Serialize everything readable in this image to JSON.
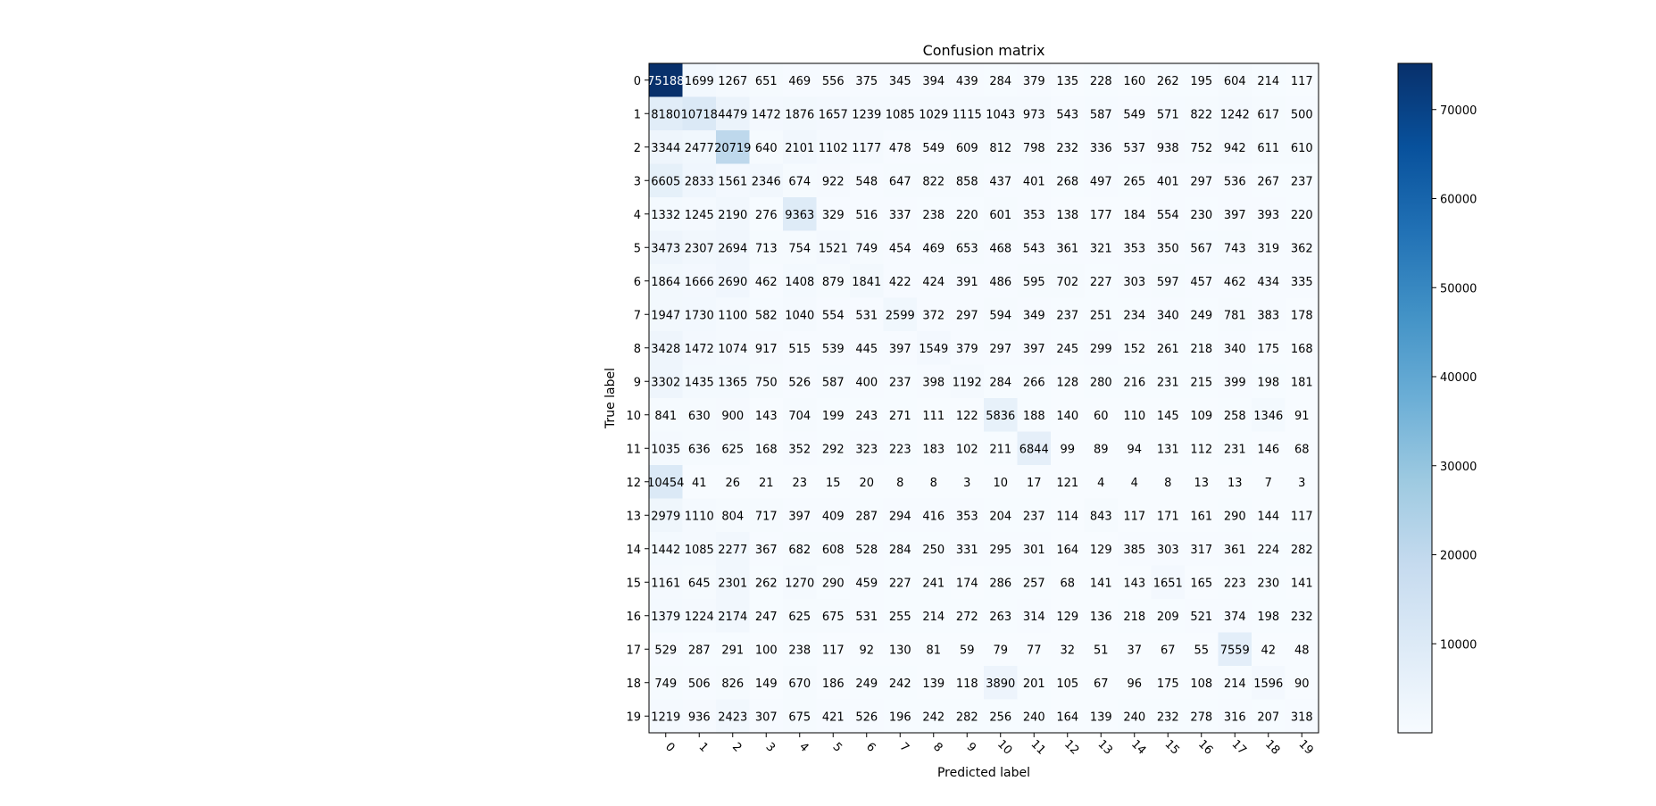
{
  "chart_data": {
    "type": "heatmap",
    "title": "Confusion matrix",
    "xlabel": "Predicted label",
    "ylabel": "True label",
    "x_labels": [
      "0",
      "1",
      "2",
      "3",
      "4",
      "5",
      "6",
      "7",
      "8",
      "9",
      "10",
      "11",
      "12",
      "13",
      "14",
      "15",
      "16",
      "17",
      "18",
      "19"
    ],
    "y_labels": [
      "0",
      "1",
      "2",
      "3",
      "4",
      "5",
      "6",
      "7",
      "8",
      "9",
      "10",
      "11",
      "12",
      "13",
      "14",
      "15",
      "16",
      "17",
      "18",
      "19"
    ],
    "colormap": "Blues",
    "color_min": "#f7fbff",
    "color_max": "#08306b",
    "value_range": [
      0,
      75188
    ],
    "colorbar_ticks": [
      "10000",
      "20000",
      "30000",
      "40000",
      "50000",
      "60000",
      "70000"
    ],
    "colorbar_tick_values": [
      10000,
      20000,
      30000,
      40000,
      50000,
      60000,
      70000
    ],
    "matrix": [
      [
        75188,
        1699,
        1267,
        651,
        469,
        556,
        375,
        345,
        394,
        439,
        284,
        379,
        135,
        228,
        160,
        262,
        195,
        604,
        214,
        117
      ],
      [
        8180,
        10718,
        4479,
        1472,
        1876,
        1657,
        1239,
        1085,
        1029,
        1115,
        1043,
        973,
        543,
        587,
        549,
        571,
        822,
        1242,
        617,
        500
      ],
      [
        3344,
        2477,
        20719,
        640,
        2101,
        1102,
        1177,
        478,
        549,
        609,
        812,
        798,
        232,
        336,
        537,
        938,
        752,
        942,
        611,
        610
      ],
      [
        6605,
        2833,
        1561,
        2346,
        674,
        922,
        548,
        647,
        822,
        858,
        437,
        401,
        268,
        497,
        265,
        401,
        297,
        536,
        267,
        237
      ],
      [
        1332,
        1245,
        2190,
        276,
        9363,
        329,
        516,
        337,
        238,
        220,
        601,
        353,
        138,
        177,
        184,
        554,
        230,
        397,
        393,
        220
      ],
      [
        3473,
        2307,
        2694,
        713,
        754,
        1521,
        749,
        454,
        469,
        653,
        468,
        543,
        361,
        321,
        353,
        350,
        567,
        743,
        319,
        362
      ],
      [
        1864,
        1666,
        2690,
        462,
        1408,
        879,
        1841,
        422,
        424,
        391,
        486,
        595,
        702,
        227,
        303,
        597,
        457,
        462,
        434,
        335
      ],
      [
        1947,
        1730,
        1100,
        582,
        1040,
        554,
        531,
        2599,
        372,
        297,
        594,
        349,
        237,
        251,
        234,
        340,
        249,
        781,
        383,
        178
      ],
      [
        3428,
        1472,
        1074,
        917,
        515,
        539,
        445,
        397,
        1549,
        379,
        297,
        397,
        245,
        299,
        152,
        261,
        218,
        340,
        175,
        168
      ],
      [
        3302,
        1435,
        1365,
        750,
        526,
        587,
        400,
        237,
        398,
        1192,
        284,
        266,
        128,
        280,
        216,
        231,
        215,
        399,
        198,
        181
      ],
      [
        841,
        630,
        900,
        143,
        704,
        199,
        243,
        271,
        111,
        122,
        5836,
        188,
        140,
        60,
        110,
        145,
        109,
        258,
        1346,
        91
      ],
      [
        1035,
        636,
        625,
        168,
        352,
        292,
        323,
        223,
        183,
        102,
        211,
        6844,
        99,
        89,
        94,
        131,
        112,
        231,
        146,
        68
      ],
      [
        10454,
        41,
        26,
        21,
        23,
        15,
        20,
        8,
        8,
        3,
        10,
        17,
        121,
        4,
        4,
        8,
        13,
        13,
        7,
        3
      ],
      [
        2979,
        1110,
        804,
        717,
        397,
        409,
        287,
        294,
        416,
        353,
        204,
        237,
        114,
        843,
        117,
        171,
        161,
        290,
        144,
        117
      ],
      [
        1442,
        1085,
        2277,
        367,
        682,
        608,
        528,
        284,
        250,
        331,
        295,
        301,
        164,
        129,
        385,
        303,
        317,
        361,
        224,
        282
      ],
      [
        1161,
        645,
        2301,
        262,
        1270,
        290,
        459,
        227,
        241,
        174,
        286,
        257,
        68,
        141,
        143,
        1651,
        165,
        223,
        230,
        141
      ],
      [
        1379,
        1224,
        2174,
        247,
        625,
        675,
        531,
        255,
        214,
        272,
        263,
        314,
        129,
        136,
        218,
        209,
        521,
        374,
        198,
        232
      ],
      [
        529,
        287,
        291,
        100,
        238,
        117,
        92,
        130,
        81,
        59,
        79,
        77,
        32,
        51,
        37,
        67,
        55,
        7559,
        42,
        48
      ],
      [
        749,
        506,
        826,
        149,
        670,
        186,
        249,
        242,
        139,
        118,
        3890,
        201,
        105,
        67,
        96,
        175,
        108,
        214,
        1596,
        90
      ],
      [
        1219,
        936,
        2423,
        307,
        675,
        421,
        526,
        196,
        242,
        282,
        256,
        240,
        164,
        139,
        240,
        232,
        278,
        316,
        207,
        318
      ]
    ]
  }
}
